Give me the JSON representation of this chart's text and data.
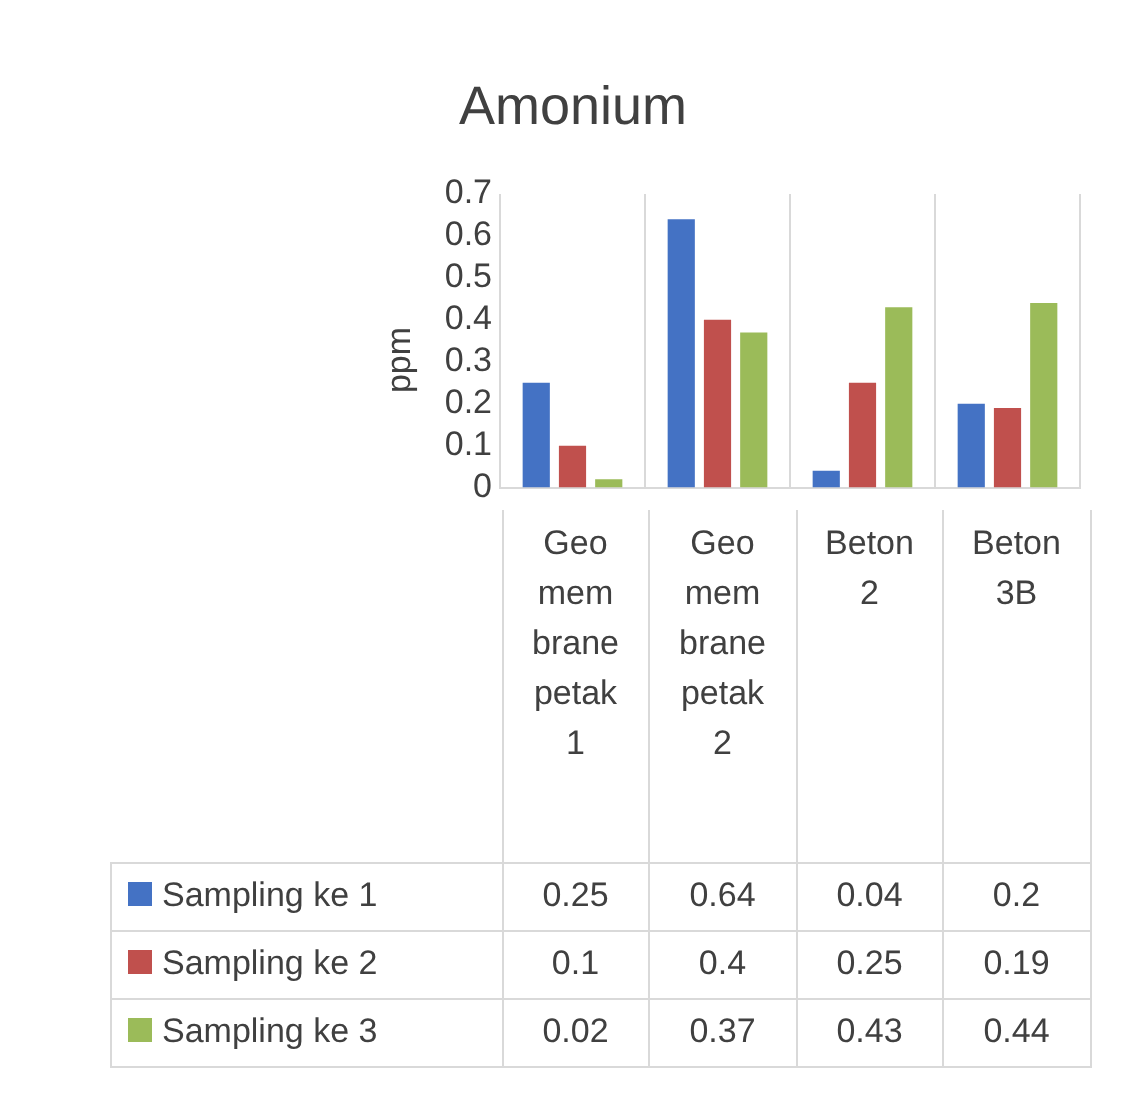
{
  "chart_data": {
    "type": "bar",
    "title": "Amonium",
    "ylabel": "ppm",
    "categories": [
      "Geomembrane petak 1",
      "Geomembrane petak 2",
      "Beton 2",
      "Beton 3B"
    ],
    "series": [
      {
        "name": "Sampling ke 1",
        "color": "#4472c4",
        "values": [
          0.25,
          0.64,
          0.04,
          0.2
        ]
      },
      {
        "name": "Sampling ke 2",
        "color": "#c0504d",
        "values": [
          0.1,
          0.4,
          0.25,
          0.19
        ]
      },
      {
        "name": "Sampling ke 3",
        "color": "#9bbb59",
        "values": [
          0.02,
          0.37,
          0.43,
          0.44
        ]
      }
    ],
    "ylim": [
      0,
      0.7
    ],
    "yticks": [
      0,
      0.1,
      0.2,
      0.3,
      0.4,
      0.5,
      0.6,
      0.7
    ],
    "grid": "x",
    "legend": "left",
    "data_labels": true
  }
}
